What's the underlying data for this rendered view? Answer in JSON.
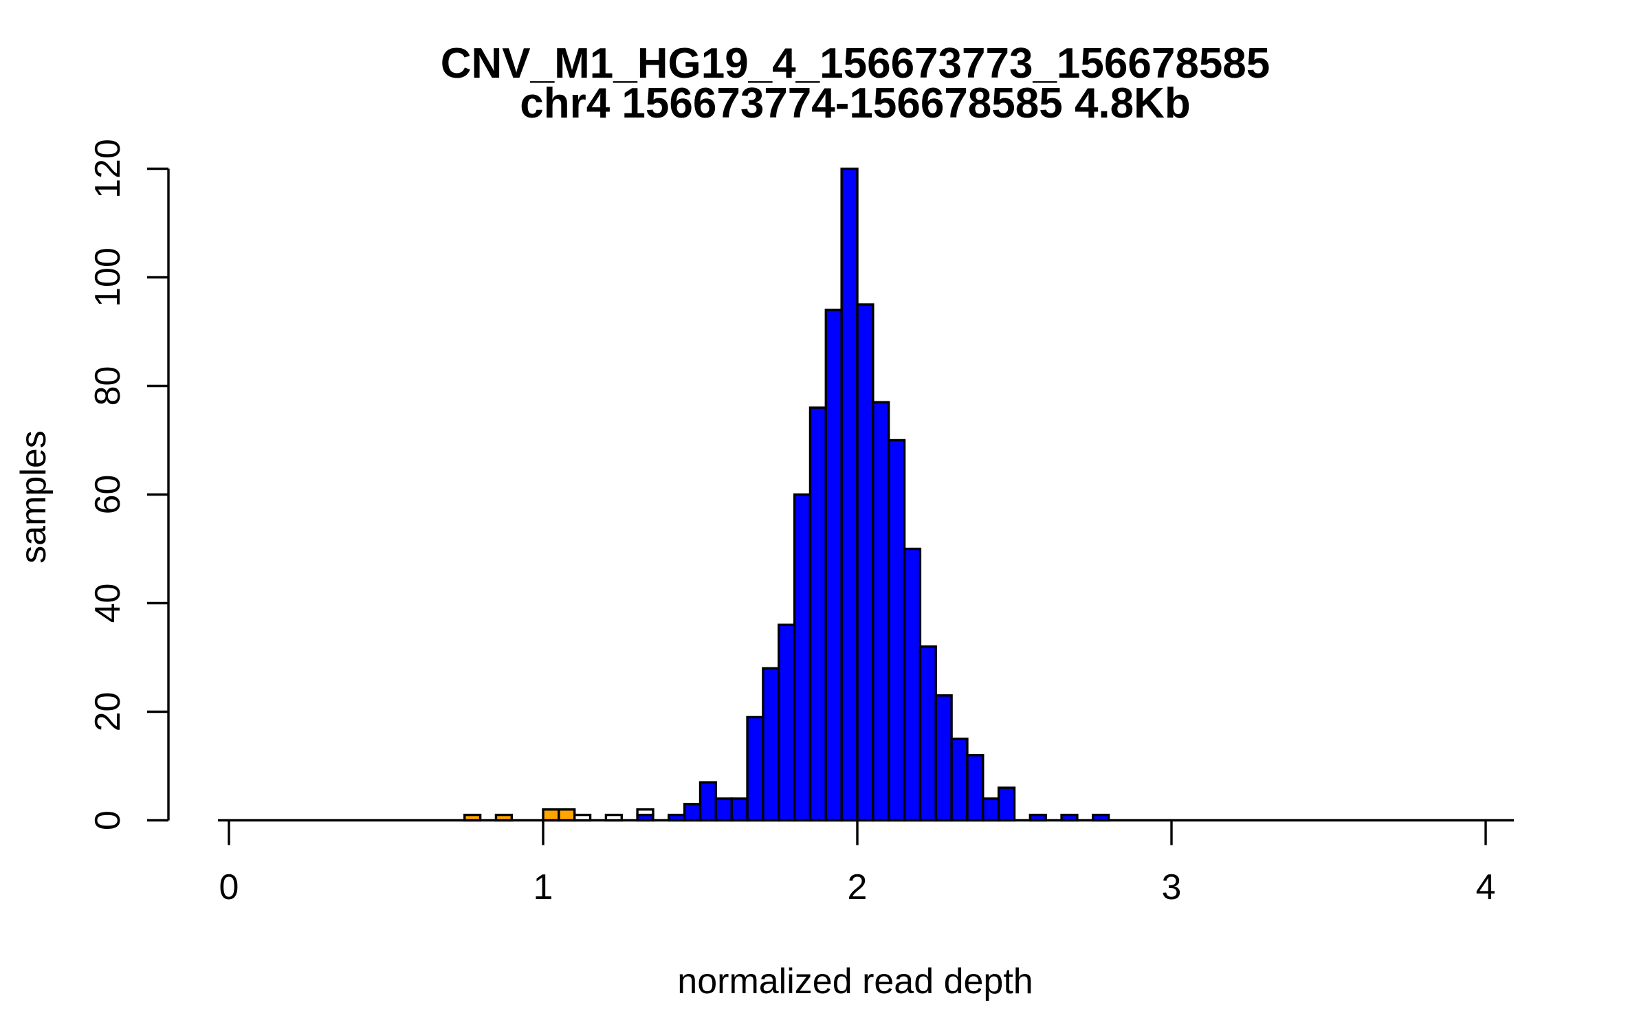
{
  "title": {
    "line1": "CNV_M1_HG19_4_156673773_156678585",
    "line2": "chr4 156673774-156678585 4.8Kb"
  },
  "chart_data": {
    "type": "bar",
    "subtype": "histogram",
    "title": "CNV_M1_HG19_4_156673773_156678585",
    "subtitle": "chr4 156673774-156678585 4.8Kb",
    "xlabel": "normalized read depth",
    "ylabel": "samples",
    "x_ticks": [
      0,
      1,
      2,
      3,
      4
    ],
    "y_ticks": [
      0,
      20,
      40,
      60,
      80,
      100,
      120
    ],
    "xlim": [
      -0.035,
      4.09
    ],
    "ylim": [
      0,
      120
    ],
    "grid": false,
    "legend": "none",
    "bin_width": 0.05,
    "colors": {
      "blue": "#0000FF",
      "orange": "#FFA500",
      "white": "#FFFFFF",
      "stroke": "#000000",
      "background": "#FFFFFF"
    },
    "bars": [
      {
        "from": 0.75,
        "to": 0.8,
        "segments": [
          {
            "color": "orange",
            "count": 1
          }
        ]
      },
      {
        "from": 0.85,
        "to": 0.9,
        "segments": [
          {
            "color": "orange",
            "count": 1
          }
        ]
      },
      {
        "from": 1.0,
        "to": 1.05,
        "segments": [
          {
            "color": "orange",
            "count": 2
          }
        ]
      },
      {
        "from": 1.05,
        "to": 1.1,
        "segments": [
          {
            "color": "orange",
            "count": 2
          }
        ]
      },
      {
        "from": 1.1,
        "to": 1.15,
        "segments": [
          {
            "color": "white",
            "count": 1
          }
        ]
      },
      {
        "from": 1.2,
        "to": 1.25,
        "segments": [
          {
            "color": "white",
            "count": 1
          }
        ]
      },
      {
        "from": 1.3,
        "to": 1.35,
        "segments": [
          {
            "color": "blue",
            "count": 1
          },
          {
            "color": "white",
            "count": 1
          }
        ]
      },
      {
        "from": 1.4,
        "to": 1.45,
        "segments": [
          {
            "color": "blue",
            "count": 1
          }
        ]
      },
      {
        "from": 1.45,
        "to": 1.5,
        "segments": [
          {
            "color": "blue",
            "count": 3
          }
        ]
      },
      {
        "from": 1.5,
        "to": 1.55,
        "segments": [
          {
            "color": "blue",
            "count": 7
          }
        ]
      },
      {
        "from": 1.55,
        "to": 1.6,
        "segments": [
          {
            "color": "blue",
            "count": 4
          }
        ]
      },
      {
        "from": 1.6,
        "to": 1.65,
        "segments": [
          {
            "color": "blue",
            "count": 4
          }
        ]
      },
      {
        "from": 1.65,
        "to": 1.7,
        "segments": [
          {
            "color": "blue",
            "count": 19
          }
        ]
      },
      {
        "from": 1.7,
        "to": 1.75,
        "segments": [
          {
            "color": "blue",
            "count": 28
          }
        ]
      },
      {
        "from": 1.75,
        "to": 1.8,
        "segments": [
          {
            "color": "blue",
            "count": 36
          }
        ]
      },
      {
        "from": 1.8,
        "to": 1.85,
        "segments": [
          {
            "color": "blue",
            "count": 60
          }
        ]
      },
      {
        "from": 1.85,
        "to": 1.9,
        "segments": [
          {
            "color": "blue",
            "count": 76
          }
        ]
      },
      {
        "from": 1.9,
        "to": 1.95,
        "segments": [
          {
            "color": "blue",
            "count": 94
          }
        ]
      },
      {
        "from": 1.95,
        "to": 2.0,
        "segments": [
          {
            "color": "blue",
            "count": 120
          }
        ]
      },
      {
        "from": 2.0,
        "to": 2.05,
        "segments": [
          {
            "color": "blue",
            "count": 95
          }
        ]
      },
      {
        "from": 2.05,
        "to": 2.1,
        "segments": [
          {
            "color": "blue",
            "count": 77
          }
        ]
      },
      {
        "from": 2.1,
        "to": 2.15,
        "segments": [
          {
            "color": "blue",
            "count": 70
          }
        ]
      },
      {
        "from": 2.15,
        "to": 2.2,
        "segments": [
          {
            "color": "blue",
            "count": 50
          }
        ]
      },
      {
        "from": 2.2,
        "to": 2.25,
        "segments": [
          {
            "color": "blue",
            "count": 32
          }
        ]
      },
      {
        "from": 2.25,
        "to": 2.3,
        "segments": [
          {
            "color": "blue",
            "count": 23
          }
        ]
      },
      {
        "from": 2.3,
        "to": 2.35,
        "segments": [
          {
            "color": "blue",
            "count": 15
          }
        ]
      },
      {
        "from": 2.35,
        "to": 2.4,
        "segments": [
          {
            "color": "blue",
            "count": 12
          }
        ]
      },
      {
        "from": 2.4,
        "to": 2.45,
        "segments": [
          {
            "color": "blue",
            "count": 4
          }
        ]
      },
      {
        "from": 2.45,
        "to": 2.5,
        "segments": [
          {
            "color": "blue",
            "count": 6
          }
        ]
      },
      {
        "from": 2.55,
        "to": 2.6,
        "segments": [
          {
            "color": "blue",
            "count": 1
          }
        ]
      },
      {
        "from": 2.65,
        "to": 2.7,
        "segments": [
          {
            "color": "blue",
            "count": 1
          }
        ]
      },
      {
        "from": 2.75,
        "to": 2.8,
        "segments": [
          {
            "color": "blue",
            "count": 1
          }
        ]
      }
    ]
  }
}
